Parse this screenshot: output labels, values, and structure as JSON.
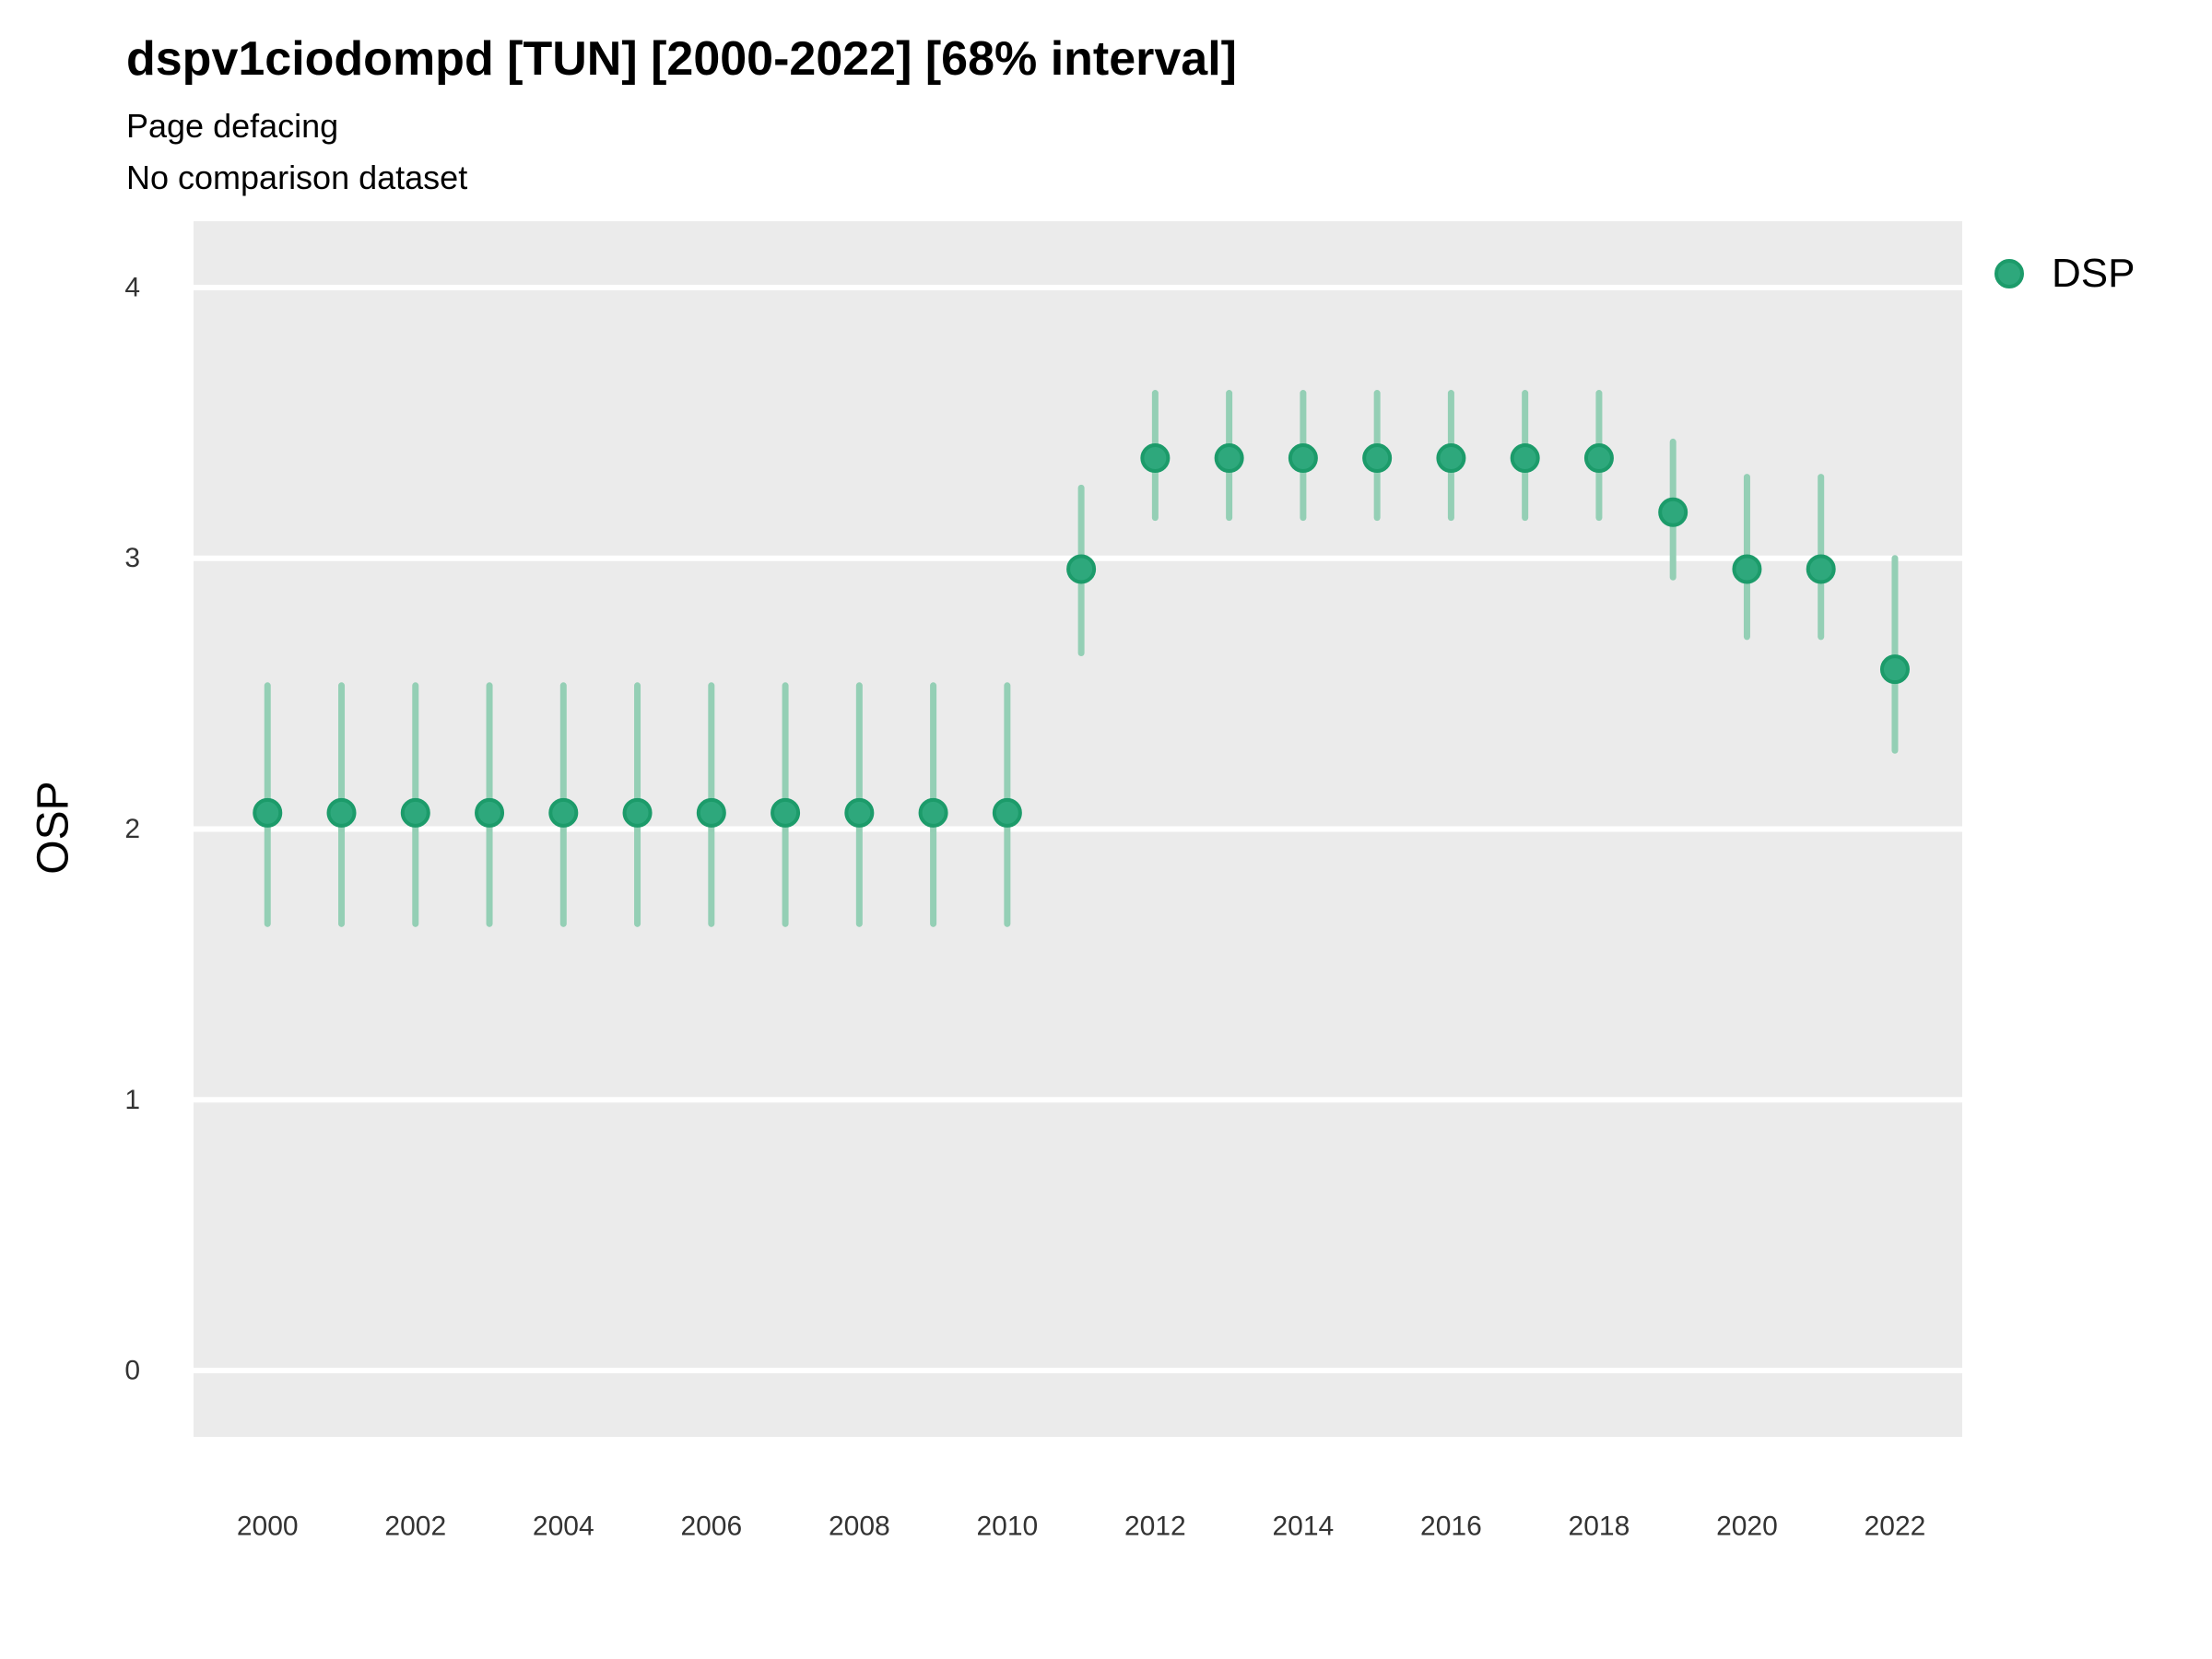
{
  "title": "dspv1ciodompd [TUN] [2000-2022] [68% interval]",
  "subtitle": "Page defacing",
  "comparison_note": "No comparison dataset",
  "legend": {
    "label": "DSP"
  },
  "colors": {
    "point_fill": "#2EA87C",
    "point_stroke": "#1C9B6A",
    "error_bar": "#94CFB5",
    "panel_bg": "#EBEBEB",
    "gridline": "#FFFFFF",
    "axis_text": "#333333"
  },
  "chart_data": {
    "type": "scatter",
    "title": "dspv1ciodompd [TUN] [2000-2022] [68% interval]",
    "subtitle": "Page defacing",
    "note": "No comparison dataset",
    "xlabel": "",
    "ylabel": "OSP",
    "interval": "68%",
    "legend_position": "right",
    "grid": true,
    "xlim": [
      1999.0,
      2022.91
    ],
    "ylim": [
      -0.245,
      4.245
    ],
    "x_ticks": [
      2000,
      2002,
      2004,
      2006,
      2008,
      2010,
      2012,
      2014,
      2016,
      2018,
      2020,
      2022
    ],
    "y_ticks": [
      0,
      1,
      2,
      3,
      4
    ],
    "series": [
      {
        "name": "DSP",
        "x": [
          2000,
          2001,
          2002,
          2003,
          2004,
          2005,
          2006,
          2007,
          2008,
          2009,
          2010,
          2011,
          2012,
          2013,
          2014,
          2015,
          2016,
          2017,
          2018,
          2019,
          2020,
          2021,
          2022
        ],
        "y": [
          2.06,
          2.06,
          2.06,
          2.06,
          2.06,
          2.06,
          2.06,
          2.06,
          2.06,
          2.06,
          2.06,
          2.96,
          3.37,
          3.37,
          3.37,
          3.37,
          3.37,
          3.37,
          3.37,
          3.17,
          2.96,
          2.96,
          2.59
        ],
        "y_low": [
          1.65,
          1.65,
          1.65,
          1.65,
          1.65,
          1.65,
          1.65,
          1.65,
          1.65,
          1.65,
          1.65,
          2.65,
          3.15,
          3.15,
          3.15,
          3.15,
          3.15,
          3.15,
          3.15,
          2.93,
          2.71,
          2.71,
          2.29
        ],
        "y_high": [
          2.53,
          2.53,
          2.53,
          2.53,
          2.53,
          2.53,
          2.53,
          2.53,
          2.53,
          2.53,
          2.53,
          3.26,
          3.61,
          3.61,
          3.61,
          3.61,
          3.61,
          3.61,
          3.61,
          3.43,
          3.3,
          3.3,
          3.0
        ]
      }
    ]
  }
}
